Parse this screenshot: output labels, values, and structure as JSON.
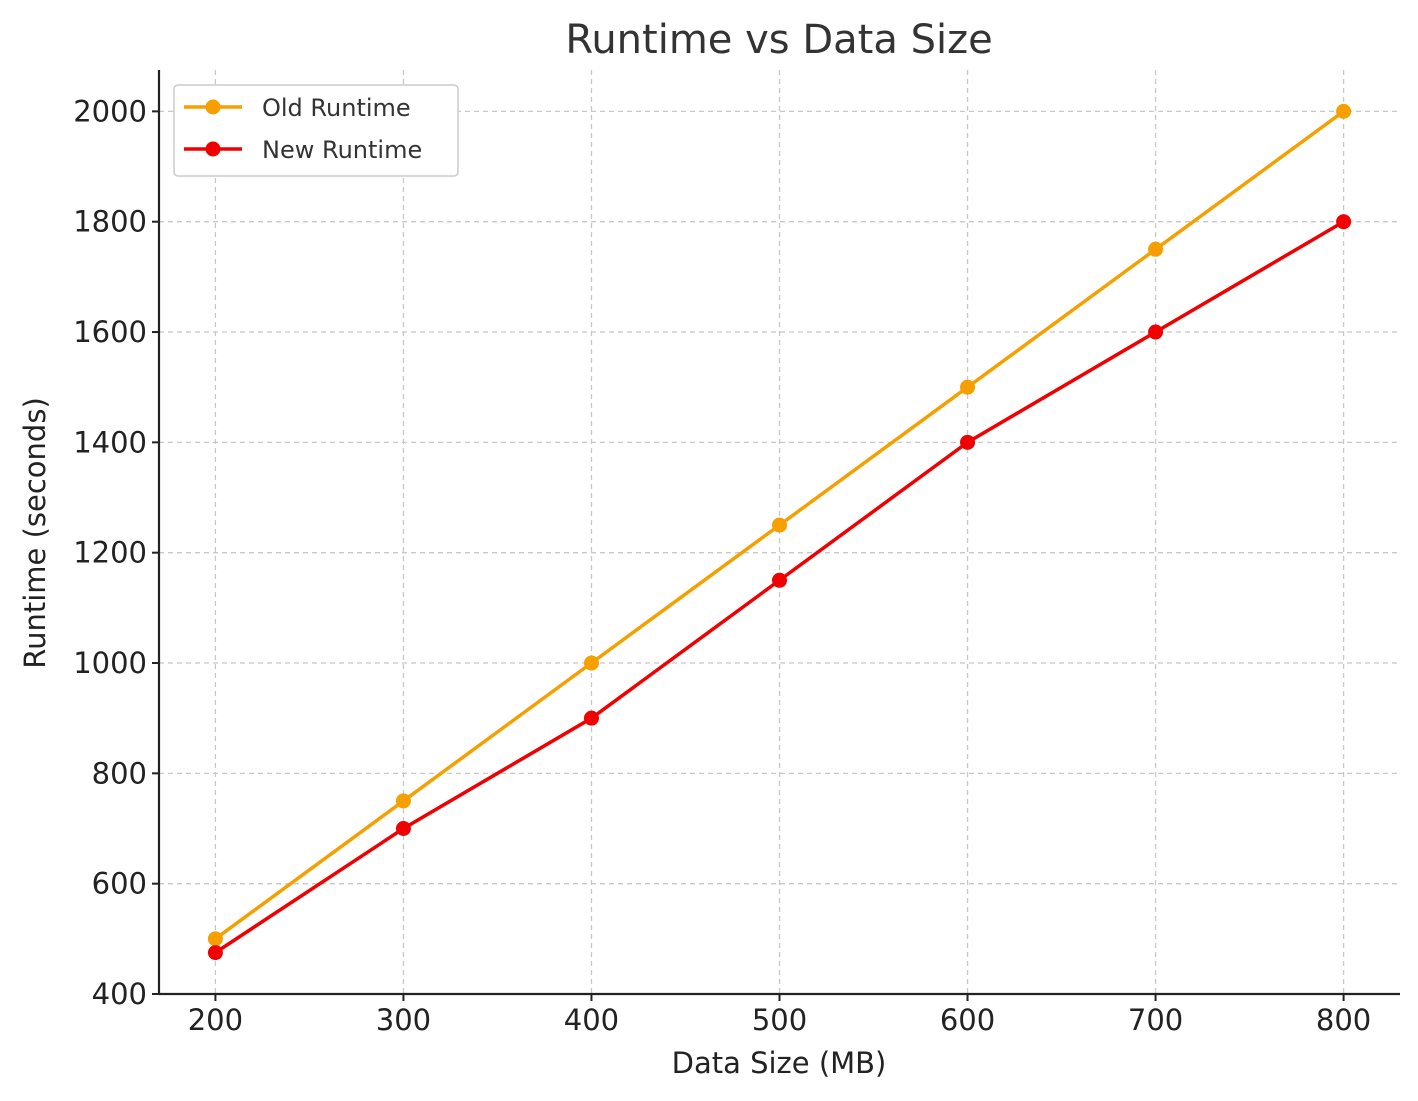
{
  "chart_data": {
    "type": "line",
    "title": "Runtime vs Data Size",
    "xlabel": "Data Size (MB)",
    "ylabel": "Runtime (seconds)",
    "x": [
      200,
      300,
      400,
      500,
      600,
      700,
      800
    ],
    "xlim": [
      170,
      830
    ],
    "ylim": [
      400,
      2075
    ],
    "xticks": [
      200,
      300,
      400,
      500,
      600,
      700,
      800
    ],
    "yticks": [
      400,
      600,
      800,
      1000,
      1200,
      1400,
      1600,
      1800,
      2000
    ],
    "grid": true,
    "legend_position": "top-left",
    "series": [
      {
        "name": "Old Runtime",
        "color": "#f5a000",
        "values": [
          500,
          750,
          1000,
          1250,
          1500,
          1750,
          2000
        ]
      },
      {
        "name": "New Runtime",
        "color": "#f00000",
        "values": [
          475,
          700,
          900,
          1150,
          1400,
          1600,
          1800
        ]
      }
    ]
  }
}
